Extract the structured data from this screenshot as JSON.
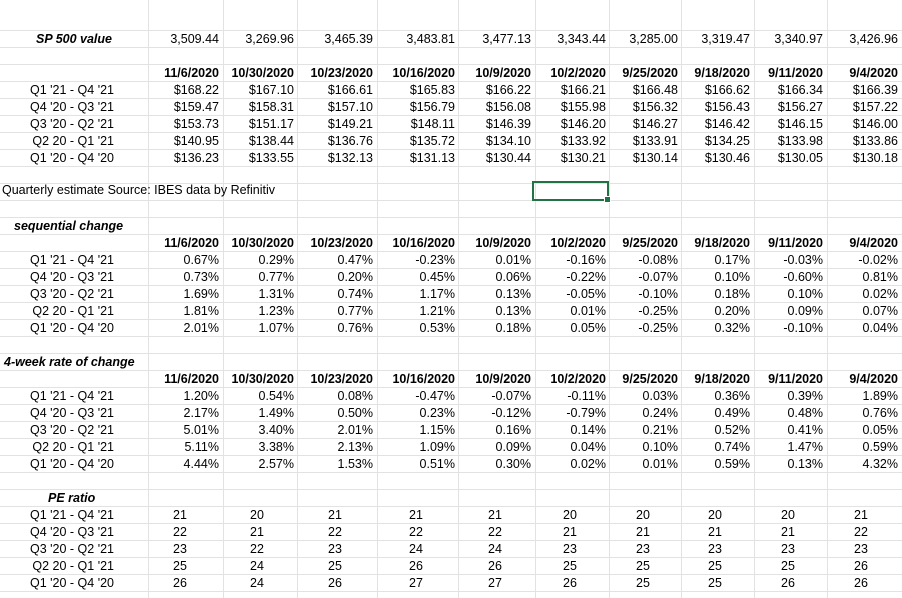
{
  "sp500": {
    "label": "SP 500 value",
    "values": [
      "3,509.44",
      "3,269.96",
      "3,465.39",
      "3,483.81",
      "3,477.13",
      "3,343.44",
      "3,285.00",
      "3,319.47",
      "3,340.97",
      "3,426.96"
    ]
  },
  "dates": [
    "11/6/2020",
    "10/30/2020",
    "10/23/2020",
    "10/16/2020",
    "10/9/2020",
    "10/2/2020",
    "9/25/2020",
    "9/18/2020",
    "9/11/2020",
    "9/4/2020"
  ],
  "periods": [
    "Q1 '21 - Q4 '21",
    "Q4 '20 - Q3 '21",
    "Q3 '20 - Q2 '21",
    "Q2 20 - Q1 '21",
    "Q1 '20 - Q4 '20"
  ],
  "estimates": [
    [
      "$168.22",
      "$167.10",
      "$166.61",
      "$165.83",
      "$166.22",
      "$166.21",
      "$166.48",
      "$166.62",
      "$166.34",
      "$166.39"
    ],
    [
      "$159.47",
      "$158.31",
      "$157.10",
      "$156.79",
      "$156.08",
      "$155.98",
      "$156.32",
      "$156.43",
      "$156.27",
      "$157.22"
    ],
    [
      "$153.73",
      "$151.17",
      "$149.21",
      "$148.11",
      "$146.39",
      "$146.20",
      "$146.27",
      "$146.42",
      "$146.15",
      "$146.00"
    ],
    [
      "$140.95",
      "$138.44",
      "$136.76",
      "$135.72",
      "$134.10",
      "$133.92",
      "$133.91",
      "$134.25",
      "$133.98",
      "$133.86"
    ],
    [
      "$136.23",
      "$133.55",
      "$132.13",
      "$131.13",
      "$130.44",
      "$130.21",
      "$130.14",
      "$130.46",
      "$130.05",
      "$130.18"
    ]
  ],
  "source_note": "Quarterly estimate Source: IBES data by Refinitiv",
  "sequential": {
    "title": "sequential change",
    "rows": [
      [
        "0.67%",
        "0.29%",
        "0.47%",
        "-0.23%",
        "0.01%",
        "-0.16%",
        "-0.08%",
        "0.17%",
        "-0.03%",
        "-0.02%"
      ],
      [
        "0.73%",
        "0.77%",
        "0.20%",
        "0.45%",
        "0.06%",
        "-0.22%",
        "-0.07%",
        "0.10%",
        "-0.60%",
        "0.81%"
      ],
      [
        "1.69%",
        "1.31%",
        "0.74%",
        "1.17%",
        "0.13%",
        "-0.05%",
        "-0.10%",
        "0.18%",
        "0.10%",
        "0.02%"
      ],
      [
        "1.81%",
        "1.23%",
        "0.77%",
        "1.21%",
        "0.13%",
        "0.01%",
        "-0.25%",
        "0.20%",
        "0.09%",
        "0.07%"
      ],
      [
        "2.01%",
        "1.07%",
        "0.76%",
        "0.53%",
        "0.18%",
        "0.05%",
        "-0.25%",
        "0.32%",
        "-0.10%",
        "0.04%"
      ]
    ]
  },
  "rate4w": {
    "title": "4-week rate of change",
    "rows": [
      [
        "1.20%",
        "0.54%",
        "0.08%",
        "-0.47%",
        "-0.07%",
        "-0.11%",
        "0.03%",
        "0.36%",
        "0.39%",
        "1.89%"
      ],
      [
        "2.17%",
        "1.49%",
        "0.50%",
        "0.23%",
        "-0.12%",
        "-0.79%",
        "0.24%",
        "0.49%",
        "0.48%",
        "0.76%"
      ],
      [
        "5.01%",
        "3.40%",
        "2.01%",
        "1.15%",
        "0.16%",
        "0.14%",
        "0.21%",
        "0.52%",
        "0.41%",
        "0.05%"
      ],
      [
        "5.11%",
        "3.38%",
        "2.13%",
        "1.09%",
        "0.09%",
        "0.04%",
        "0.10%",
        "0.74%",
        "1.47%",
        "0.59%"
      ],
      [
        "4.44%",
        "2.57%",
        "1.53%",
        "0.51%",
        "0.30%",
        "0.02%",
        "0.01%",
        "0.59%",
        "0.13%",
        "4.32%"
      ]
    ]
  },
  "pe": {
    "title": "PE ratio",
    "rows": [
      [
        "21",
        "20",
        "21",
        "21",
        "21",
        "20",
        "20",
        "20",
        "20",
        "21"
      ],
      [
        "22",
        "21",
        "22",
        "22",
        "22",
        "21",
        "21",
        "21",
        "21",
        "22"
      ],
      [
        "23",
        "22",
        "23",
        "24",
        "24",
        "23",
        "23",
        "23",
        "23",
        "23"
      ],
      [
        "25",
        "24",
        "25",
        "26",
        "26",
        "25",
        "25",
        "25",
        "25",
        "26"
      ],
      [
        "26",
        "24",
        "26",
        "27",
        "27",
        "26",
        "25",
        "25",
        "26",
        "26"
      ]
    ]
  }
}
